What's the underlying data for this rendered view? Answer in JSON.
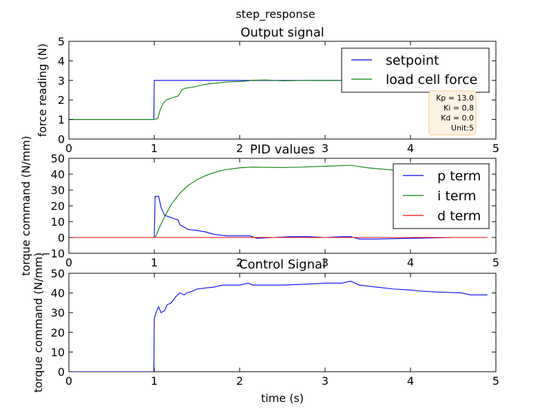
{
  "figure": {
    "suptitle": "step_response",
    "colors": {
      "setpoint": "#0000ff",
      "load_cell_force": "#008000",
      "p_term": "#0000ff",
      "i_term": "#008000",
      "d_term": "#ff0000",
      "control": "#0000ff",
      "info_box_fill": "#fdf3e3",
      "info_box_edge": "#f5c98a"
    },
    "info_box": {
      "lines": [
        "Kp = 13.0",
        "Ki = 0.8",
        "Kd = 0.0",
        "Unit:5"
      ]
    }
  },
  "chart_data": [
    {
      "type": "line",
      "title": "Output signal",
      "xlabel": "",
      "ylabel": "force reading (N)",
      "xlim": [
        0,
        5
      ],
      "ylim": [
        0,
        5
      ],
      "xticks": [
        "0",
        "1",
        "2",
        "3",
        "4",
        "5"
      ],
      "yticks": [
        "0",
        "1",
        "2",
        "3",
        "4",
        "5"
      ],
      "legend_position": "top-right",
      "grid": false,
      "series": [
        {
          "name": "setpoint",
          "color": "#0000ff",
          "x": [
            0,
            0.995,
            1.0,
            4.9
          ],
          "y": [
            1.0,
            1.0,
            3.0,
            3.0
          ]
        },
        {
          "name": "load cell force",
          "color": "#008000",
          "x": [
            0,
            1.0,
            1.04,
            1.07,
            1.1,
            1.14,
            1.2,
            1.28,
            1.32,
            1.36,
            1.45,
            1.55,
            1.6,
            1.7,
            1.85,
            2.05,
            2.15,
            2.3,
            2.5,
            2.8,
            3.0,
            3.2,
            3.35,
            3.5,
            3.8,
            4.0,
            4.3,
            4.6,
            4.9
          ],
          "y": [
            1.0,
            1.0,
            1.05,
            1.5,
            1.8,
            2.0,
            2.1,
            2.2,
            2.5,
            2.6,
            2.65,
            2.75,
            2.8,
            2.85,
            2.92,
            2.95,
            3.01,
            3.02,
            2.98,
            3.0,
            3.0,
            3.0,
            3.01,
            3.0,
            3.0,
            2.98,
            2.97,
            2.97,
            2.96
          ]
        }
      ]
    },
    {
      "type": "line",
      "title": "PID values",
      "xlabel": "",
      "ylabel": "torque command (N/mm)",
      "xlim": [
        0,
        5
      ],
      "ylim": [
        -10,
        50
      ],
      "xticks": [
        "0",
        "1",
        "2",
        "3",
        "4",
        "5"
      ],
      "yticks": [
        "−10",
        "0",
        "10",
        "20",
        "30",
        "40",
        "50"
      ],
      "legend_position": "top-right",
      "grid": false,
      "series": [
        {
          "name": "p term",
          "color": "#0000ff",
          "x": [
            0,
            1.0,
            1.01,
            1.05,
            1.08,
            1.12,
            1.2,
            1.28,
            1.3,
            1.4,
            1.5,
            1.6,
            1.7,
            1.85,
            2.0,
            2.12,
            2.2,
            2.4,
            2.6,
            2.8,
            3.0,
            3.2,
            3.3,
            3.4,
            3.6,
            4.0,
            4.5,
            4.9
          ],
          "y": [
            0.0,
            0.0,
            26.0,
            26.0,
            19.0,
            14.0,
            12.5,
            11.0,
            8.0,
            5.0,
            4.5,
            3.5,
            2.0,
            1.0,
            1.0,
            1.0,
            -0.5,
            0.0,
            0.5,
            0.5,
            0.0,
            0.5,
            0.5,
            -1.0,
            -1.0,
            -0.5,
            0.0,
            0.0
          ]
        },
        {
          "name": "i term",
          "color": "#008000",
          "x": [
            0,
            1.0,
            1.02,
            1.05,
            1.1,
            1.15,
            1.2,
            1.3,
            1.4,
            1.5,
            1.6,
            1.7,
            1.8,
            1.9,
            2.0,
            2.15,
            2.3,
            2.5,
            2.7,
            2.9,
            3.1,
            3.3,
            3.5,
            3.7,
            3.9,
            4.1,
            4.3,
            4.5,
            4.7,
            4.9
          ],
          "y": [
            0.0,
            0.0,
            1.0,
            5.0,
            11.0,
            16.0,
            21.0,
            28.0,
            33.0,
            36.5,
            39.0,
            41.0,
            42.5,
            43.3,
            44.0,
            44.5,
            44.3,
            44.2,
            44.4,
            44.8,
            45.2,
            45.6,
            44.0,
            43.0,
            42.0,
            41.0,
            40.0,
            39.5,
            39.3,
            39.1
          ]
        },
        {
          "name": "d term",
          "color": "#ff0000",
          "x": [
            0,
            4.9
          ],
          "y": [
            0.0,
            0.0
          ]
        }
      ]
    },
    {
      "type": "line",
      "title": "Control Signal",
      "xlabel": "time (s)",
      "ylabel": "torque command (N/mm)",
      "xlim": [
        0,
        5
      ],
      "ylim": [
        0,
        50
      ],
      "xticks": [
        "0",
        "1",
        "2",
        "3",
        "4",
        "5"
      ],
      "yticks": [
        "0",
        "10",
        "20",
        "30",
        "40",
        "50"
      ],
      "legend_position": "none",
      "grid": false,
      "series": [
        {
          "name": "",
          "color": "#0000ff",
          "x": [
            0,
            0.995,
            1.0,
            1.02,
            1.05,
            1.08,
            1.12,
            1.15,
            1.2,
            1.25,
            1.3,
            1.35,
            1.38,
            1.45,
            1.5,
            1.6,
            1.7,
            1.8,
            2.0,
            2.1,
            2.15,
            2.5,
            2.8,
            3.0,
            3.2,
            3.3,
            3.4,
            3.6,
            3.8,
            4.0,
            4.1,
            4.3,
            4.6,
            4.7,
            4.9
          ],
          "y": [
            0,
            0,
            27,
            30,
            33,
            30,
            31,
            34,
            35,
            38,
            40,
            39,
            40,
            41,
            42,
            42.5,
            43,
            44,
            44,
            45,
            44,
            44,
            44.5,
            45,
            45,
            46,
            44,
            43,
            42,
            41.5,
            41,
            40.5,
            40,
            39,
            39
          ]
        }
      ]
    }
  ]
}
